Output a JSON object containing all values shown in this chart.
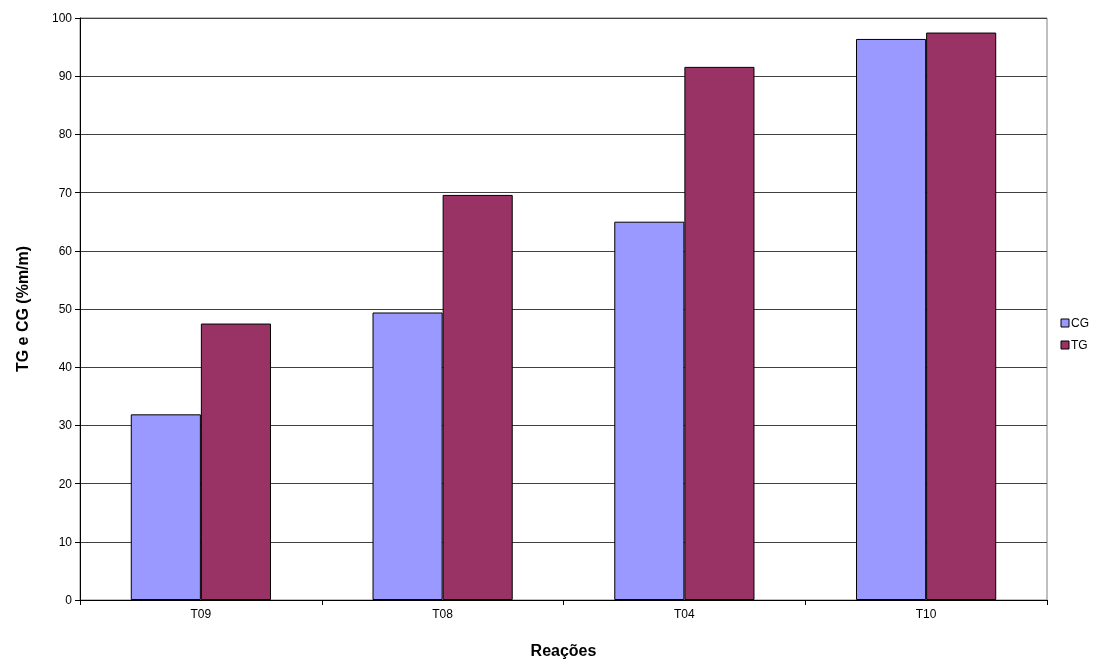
{
  "chart_data": {
    "type": "bar",
    "xlabel": "Reações",
    "ylabel": "TG e CG (%m/m)",
    "categories": [
      "T09",
      "T08",
      "T04",
      "T10"
    ],
    "series": [
      {
        "name": "CG",
        "color": "#9999ff",
        "values": [
          31.9,
          49.4,
          65.0,
          96.4
        ]
      },
      {
        "name": "TG",
        "color": "#993366",
        "values": [
          47.5,
          69.6,
          91.6,
          97.5
        ]
      }
    ],
    "ylim": [
      0,
      100
    ],
    "yticks": [
      0,
      10,
      20,
      30,
      40,
      50,
      60,
      70,
      80,
      90,
      100
    ],
    "grid": "y",
    "legend": "right"
  }
}
